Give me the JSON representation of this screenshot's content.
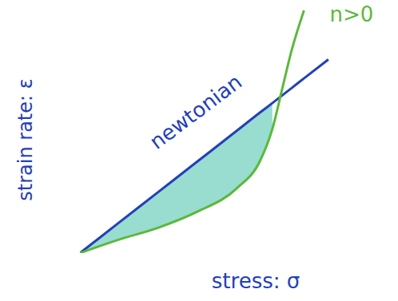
{
  "chart_data": {
    "type": "line",
    "x": [
      0,
      1.6,
      3.2,
      4.8,
      6.45,
      7.4,
      7.9,
      8.3,
      8.7,
      9.2,
      10.2
    ],
    "series": [
      {
        "name": "newtonian",
        "color": "#2340b8",
        "values": [
          0,
          1.24,
          2.48,
          3.72,
          5.0,
          5.74,
          6.12,
          6.43,
          6.74,
          7.13,
          7.9
        ]
      },
      {
        "name": "n>0",
        "color": "#5cb83a",
        "values": [
          0,
          0.55,
          1.03,
          1.68,
          2.65,
          3.77,
          5.06,
          6.68,
          8.3,
          9.9,
          null
        ]
      }
    ],
    "xlabel": "stress: σ",
    "ylabel": "strain rate: ε",
    "xlim": [
      0,
      10.5
    ],
    "ylim": [
      0,
      10
    ],
    "xticks": [],
    "yticks": [],
    "tick_labels": false,
    "grid": false
  }
}
